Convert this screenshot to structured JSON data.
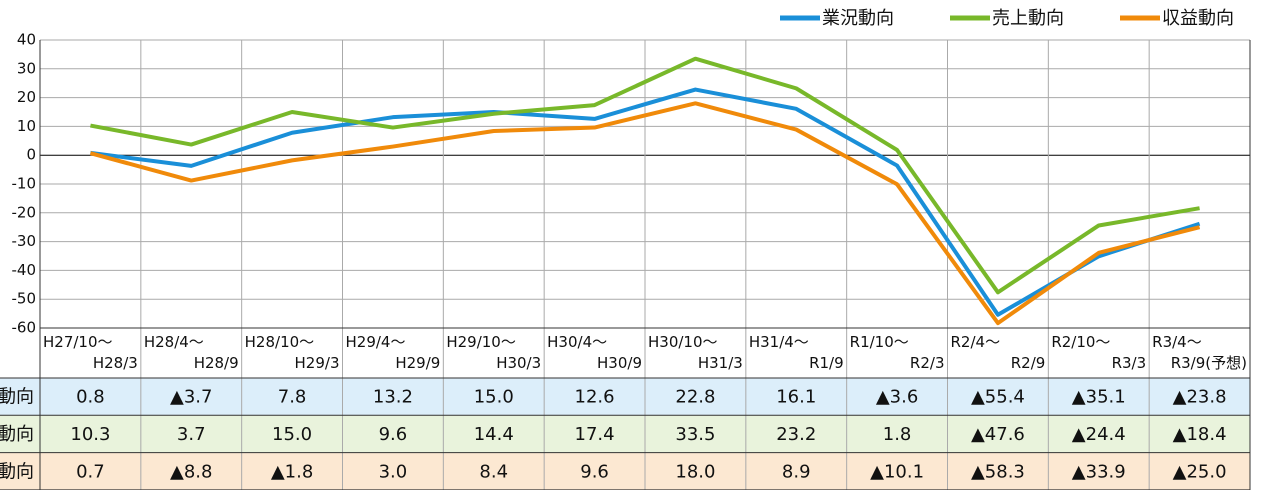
{
  "chart_data": {
    "type": "line",
    "categories": [
      "H27/10～\nH28/3",
      "H28/4～\nH28/9",
      "H28/10～\nH29/3",
      "H29/4～\nH29/9",
      "H29/10～\nH30/3",
      "H30/4～\nH30/9",
      "H30/10～\nH31/3",
      "H31/4～\nR1/9",
      "R1/10～\nR2/3",
      "R2/4～\nR2/9",
      "R2/10～\nR3/3",
      "R3/4～\nR3/9(予想)"
    ],
    "series": [
      {
        "name": "業況動向",
        "color": "#1a8fd8",
        "row_color": "#dceefa",
        "values": [
          0.8,
          -3.7,
          7.8,
          13.2,
          15.0,
          12.6,
          22.8,
          16.1,
          -3.6,
          -55.4,
          -35.1,
          -23.8
        ],
        "value_labels": [
          "0.8",
          "▲3.7",
          "7.8",
          "13.2",
          "15.0",
          "12.6",
          "22.8",
          "16.1",
          "▲3.6",
          "▲55.4",
          "▲35.1",
          "▲23.8"
        ]
      },
      {
        "name": "売上動向",
        "color": "#78b82a",
        "row_color": "#e9f3dc",
        "values": [
          10.3,
          3.7,
          15.0,
          9.6,
          14.4,
          17.4,
          33.5,
          23.2,
          1.8,
          -47.6,
          -24.4,
          -18.4
        ],
        "value_labels": [
          "10.3",
          "3.7",
          "15.0",
          "9.6",
          "14.4",
          "17.4",
          "33.5",
          "23.2",
          "1.8",
          "▲47.6",
          "▲24.4",
          "▲18.4"
        ]
      },
      {
        "name": "収益動向",
        "color": "#f08a0a",
        "row_color": "#fce8d2",
        "values": [
          0.7,
          -8.8,
          -1.8,
          3.0,
          8.4,
          9.6,
          18.0,
          8.9,
          -10.1,
          -58.3,
          -33.9,
          -25.0
        ],
        "value_labels": [
          "0.7",
          "▲8.8",
          "▲1.8",
          "3.0",
          "8.4",
          "9.6",
          "18.0",
          "8.9",
          "▲10.1",
          "▲58.3",
          "▲33.9",
          "▲25.0"
        ]
      }
    ],
    "ylim": [
      -60,
      40
    ],
    "yticks": [
      -60,
      -50,
      -40,
      -30,
      -20,
      -10,
      0,
      10,
      20,
      30,
      40
    ],
    "grid": true,
    "legend": "top-right"
  }
}
